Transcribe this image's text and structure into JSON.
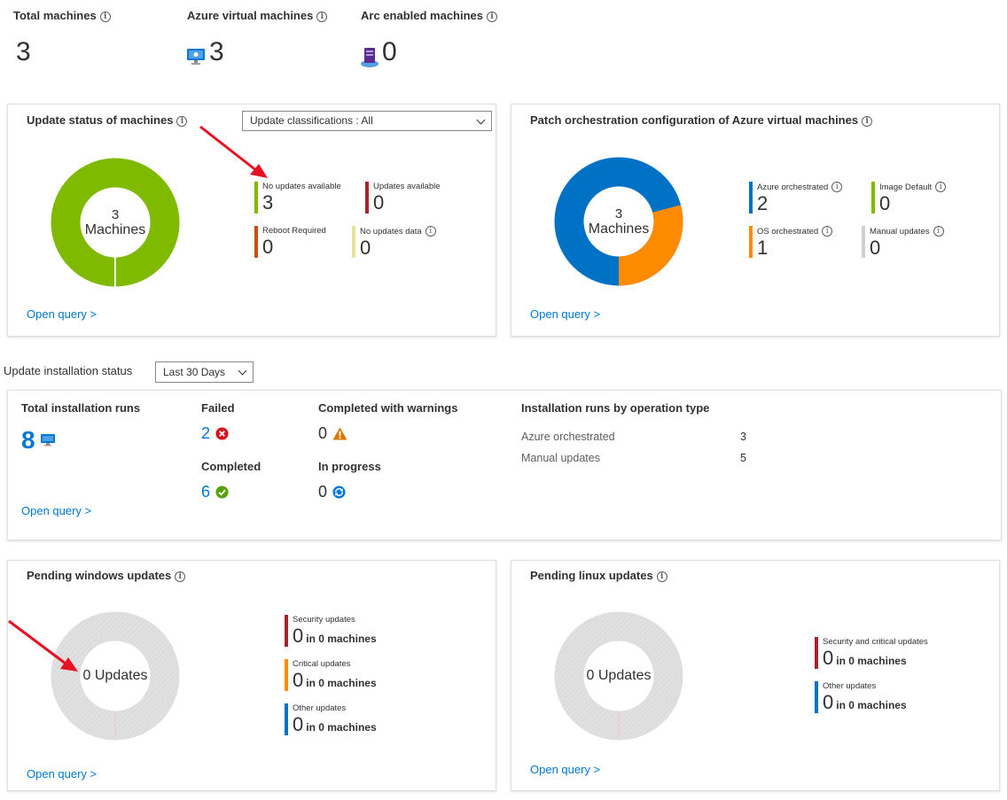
{
  "summary": {
    "total_label": "Total machines",
    "total_value": "3",
    "azure_label": "Azure virtual machines",
    "azure_value": "3",
    "arc_label": "Arc enabled machines",
    "arc_value": "0"
  },
  "update_status": {
    "title": "Update status of machines",
    "dropdown": "Update classifications : All",
    "center_count": "3",
    "center_label": "Machines",
    "legend": [
      {
        "label": "No updates available",
        "value": "3",
        "color": "#7fba00"
      },
      {
        "label": "Updates available",
        "value": "0",
        "color": "#a4262c"
      },
      {
        "label": "Reboot Required",
        "value": "0",
        "color": "#ca5010"
      },
      {
        "label": "No updates data",
        "value": "0",
        "color": "#e3e497"
      }
    ],
    "open_query": "Open query >"
  },
  "patch": {
    "title": "Patch orchestration configuration of Azure virtual machines",
    "center_count": "3",
    "center_label": "Machines",
    "legend": [
      {
        "label": "Azure orchestrated",
        "value": "2",
        "color": "#0072c6"
      },
      {
        "label": "Image Default",
        "value": "0",
        "color": "#7fba00"
      },
      {
        "label": "OS orchestrated",
        "value": "1",
        "color": "#ff8c00"
      },
      {
        "label": "Manual updates",
        "value": "0",
        "color": "#d2d0ce"
      }
    ],
    "open_query": "Open query >"
  },
  "install": {
    "section_label": "Update installation status",
    "range": "Last 30 Days",
    "total_label": "Total installation runs",
    "total_value": "8",
    "failed_label": "Failed",
    "failed_value": "2",
    "warnings_label": "Completed with warnings",
    "warnings_value": "0",
    "completed_label": "Completed",
    "completed_value": "6",
    "progress_label": "In progress",
    "progress_value": "0",
    "by_type_title": "Installation runs by operation type",
    "by_type": [
      {
        "name": "Azure orchestrated",
        "value": "3"
      },
      {
        "name": "Manual updates",
        "value": "5"
      }
    ],
    "open_query": "Open query >"
  },
  "windows": {
    "title": "Pending windows updates",
    "center": "0 Updates",
    "legend": [
      {
        "label": "Security updates",
        "value": "0",
        "unit": "in 0 machines",
        "color": "#a4262c"
      },
      {
        "label": "Critical updates",
        "value": "0",
        "unit": "in 0 machines",
        "color": "#ff8c00"
      },
      {
        "label": "Other updates",
        "value": "0",
        "unit": "in 0 machines",
        "color": "#0072c6"
      }
    ],
    "open_query": "Open query >"
  },
  "linux": {
    "title": "Pending linux updates",
    "center": "0 Updates",
    "legend": [
      {
        "label": "Security and critical updates",
        "value": "0",
        "unit": "in 0 machines",
        "color": "#a4262c"
      },
      {
        "label": "Other updates",
        "value": "0",
        "unit": "in 0 machines",
        "color": "#0072c6"
      }
    ],
    "open_query": "Open query >"
  }
}
